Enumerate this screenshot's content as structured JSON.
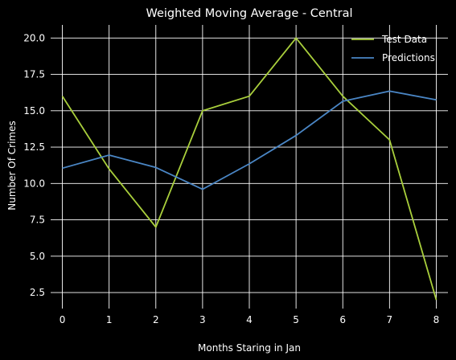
{
  "chart_data": {
    "type": "line",
    "title": "Weighted Moving Average - Central",
    "xlabel": "Months Staring in Jan",
    "ylabel": "Number Of Crimes",
    "x": [
      0,
      1,
      2,
      3,
      4,
      5,
      6,
      7,
      8
    ],
    "xticks": [
      "0",
      "1",
      "2",
      "3",
      "4",
      "5",
      "6",
      "7",
      "8"
    ],
    "yticks": [
      "2.5",
      "5.0",
      "7.5",
      "10.0",
      "12.5",
      "15.0",
      "17.5",
      "20.0"
    ],
    "ytick_values": [
      2.5,
      5.0,
      7.5,
      10.0,
      12.5,
      15.0,
      17.5,
      20.0
    ],
    "xlim": [
      -0.25,
      8.25
    ],
    "ylim": [
      1.4,
      20.9
    ],
    "grid": true,
    "legend_position": "top-right",
    "series": [
      {
        "name": "Test Data",
        "color": "#a9cf3c",
        "values": [
          16,
          11,
          7,
          15,
          16,
          20,
          16,
          13,
          2
        ]
      },
      {
        "name": "Predictions",
        "color": "#4a86c5",
        "values": [
          11.05,
          11.95,
          11.1,
          9.6,
          11.35,
          13.3,
          15.65,
          16.35,
          15.75
        ]
      }
    ]
  }
}
